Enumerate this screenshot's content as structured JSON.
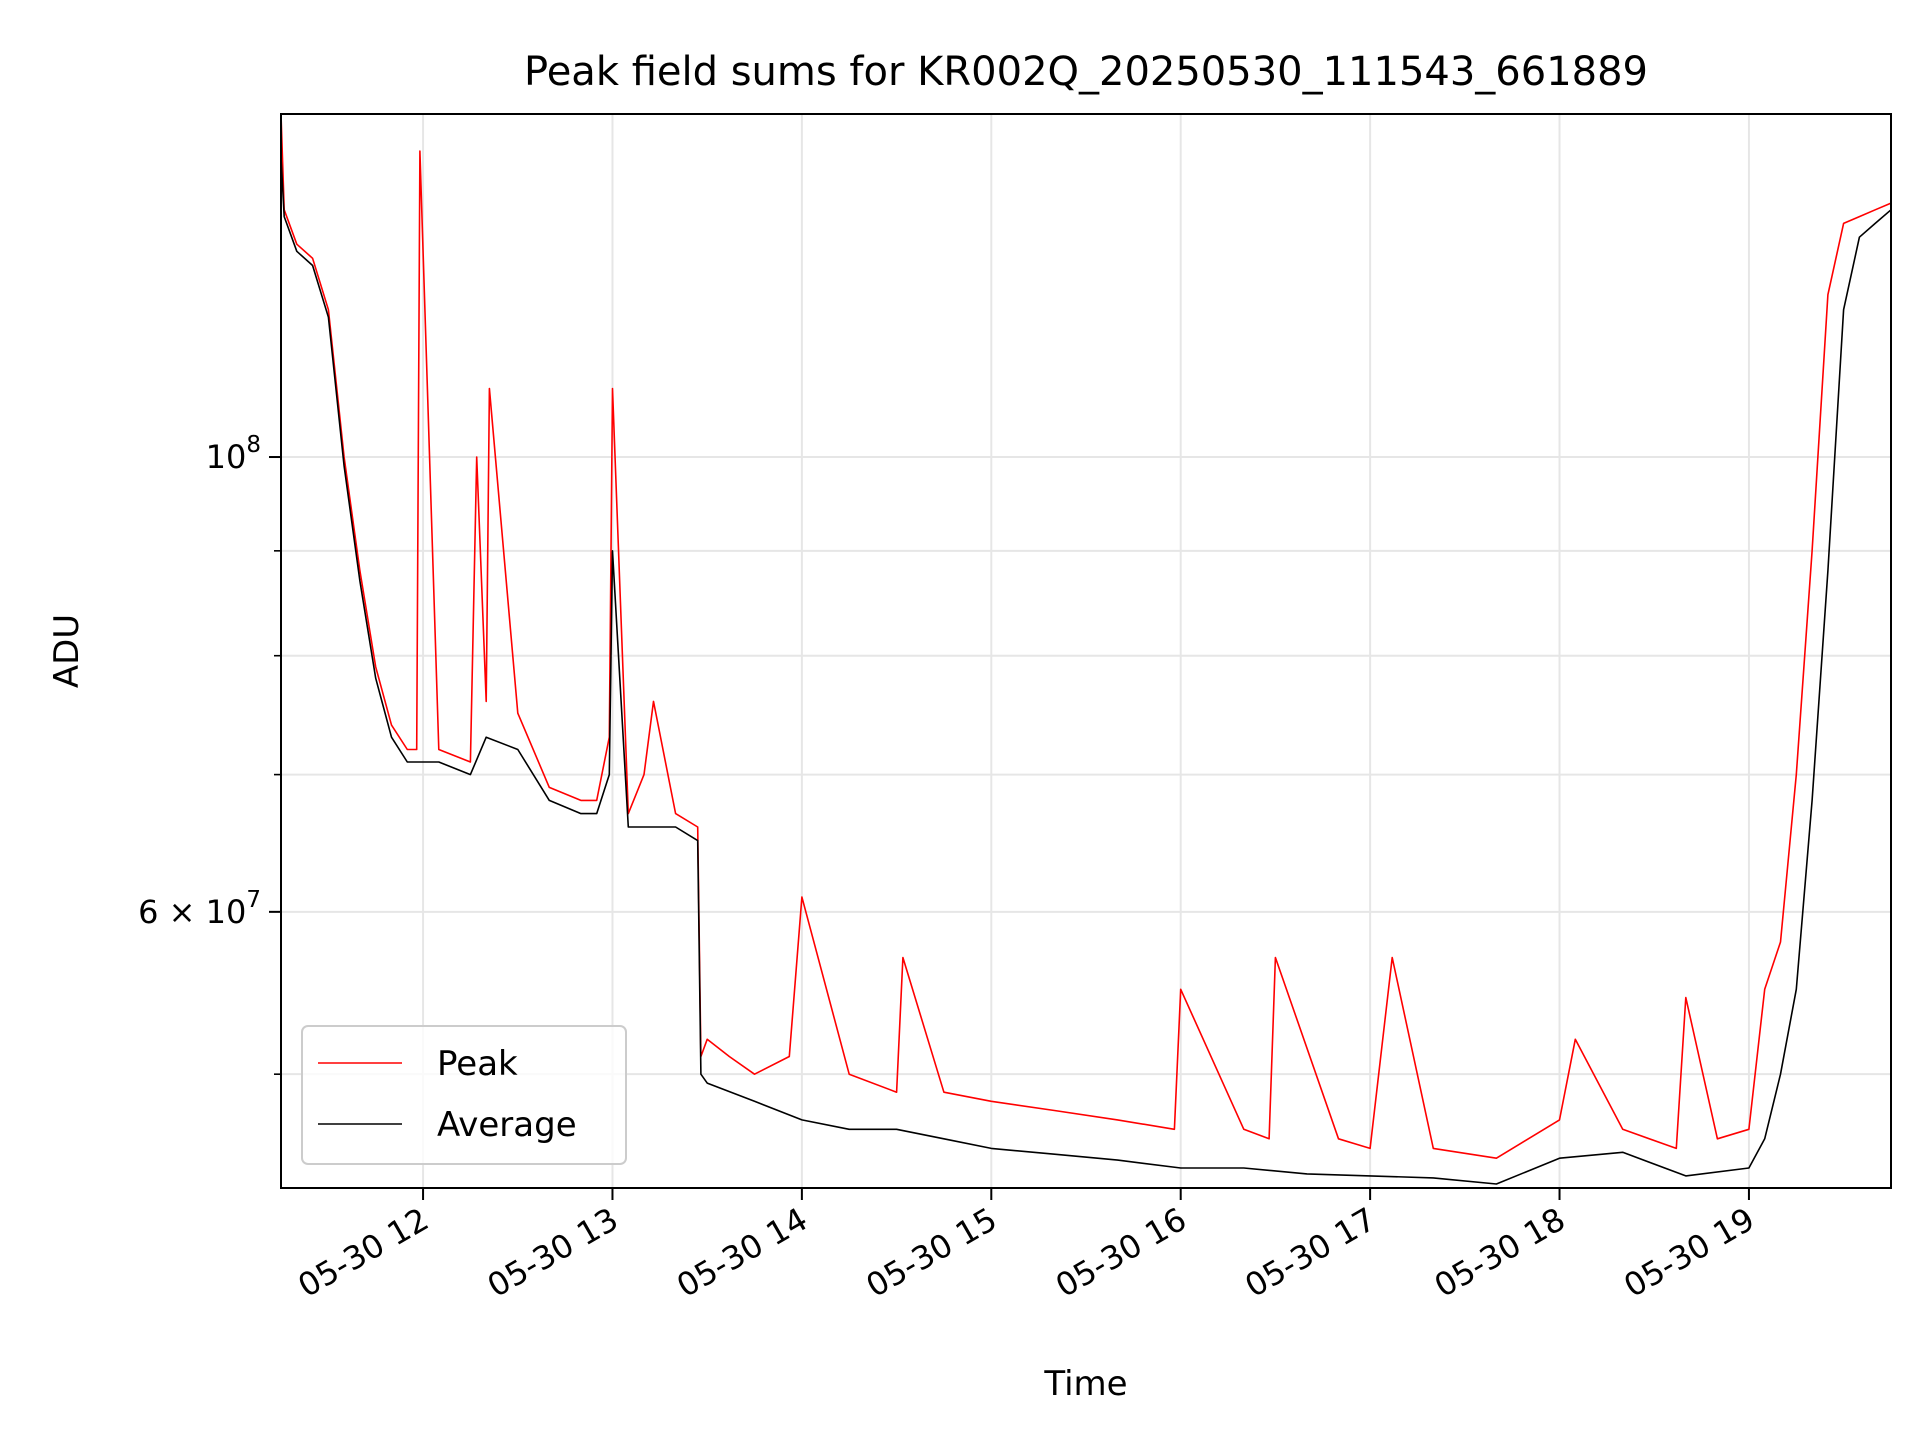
{
  "chart_data": {
    "type": "line",
    "title": "Peak field sums for KR002Q_20250530_111543_661889",
    "xlabel": "Time",
    "ylabel": "ADU",
    "y_scale": "log",
    "x_range": [
      "2025-05-30 11:15",
      "2025-05-30 19:45"
    ],
    "ylim": [
      44000000,
      147000000
    ],
    "grid": true,
    "legend_position": "lower left",
    "x_ticks": [
      {
        "value": "2025-05-30 12:00",
        "label": "05-30 12"
      },
      {
        "value": "2025-05-30 13:00",
        "label": "05-30 13"
      },
      {
        "value": "2025-05-30 14:00",
        "label": "05-30 14"
      },
      {
        "value": "2025-05-30 15:00",
        "label": "05-30 15"
      },
      {
        "value": "2025-05-30 16:00",
        "label": "05-30 16"
      },
      {
        "value": "2025-05-30 17:00",
        "label": "05-30 17"
      },
      {
        "value": "2025-05-30 18:00",
        "label": "05-30 18"
      },
      {
        "value": "2025-05-30 19:00",
        "label": "05-30 19"
      }
    ],
    "y_major_ticks": [
      {
        "value": 100000000,
        "base": "10",
        "exp": "8"
      },
      {
        "value": 60000000,
        "base": "6 × 10",
        "exp": "7"
      }
    ],
    "y_minor_ticks": [
      50000000,
      70000000,
      80000000,
      90000000
    ],
    "colors": {
      "peak": "#ff0000",
      "average": "#000000"
    },
    "series": [
      {
        "name": "Peak",
        "x": [
          "2025-05-30 11:15",
          "2025-05-30 11:16",
          "2025-05-30 11:20",
          "2025-05-30 11:25",
          "2025-05-30 11:30",
          "2025-05-30 11:35",
          "2025-05-30 11:40",
          "2025-05-30 11:45",
          "2025-05-30 11:50",
          "2025-05-30 11:55",
          "2025-05-30 11:58",
          "2025-05-30 11:59",
          "2025-05-30 12:05",
          "2025-05-30 12:15",
          "2025-05-30 12:17",
          "2025-05-30 12:20",
          "2025-05-30 12:21",
          "2025-05-30 12:30",
          "2025-05-30 12:40",
          "2025-05-30 12:50",
          "2025-05-30 12:55",
          "2025-05-30 12:59",
          "2025-05-30 13:00",
          "2025-05-30 13:05",
          "2025-05-30 13:10",
          "2025-05-30 13:13",
          "2025-05-30 13:20",
          "2025-05-30 13:27",
          "2025-05-30 13:28",
          "2025-05-30 13:30",
          "2025-05-30 13:37",
          "2025-05-30 13:45",
          "2025-05-30 13:56",
          "2025-05-30 14:00",
          "2025-05-30 14:15",
          "2025-05-30 14:30",
          "2025-05-30 14:32",
          "2025-05-30 14:45",
          "2025-05-30 15:00",
          "2025-05-30 15:20",
          "2025-05-30 15:40",
          "2025-05-30 15:58",
          "2025-05-30 16:00",
          "2025-05-30 16:20",
          "2025-05-30 16:28",
          "2025-05-30 16:30",
          "2025-05-30 16:50",
          "2025-05-30 17:00",
          "2025-05-30 17:07",
          "2025-05-30 17:20",
          "2025-05-30 17:40",
          "2025-05-30 18:00",
          "2025-05-30 18:05",
          "2025-05-30 18:20",
          "2025-05-30 18:37",
          "2025-05-30 18:40",
          "2025-05-30 18:50",
          "2025-05-30 19:00",
          "2025-05-30 19:05",
          "2025-05-30 19:10",
          "2025-05-30 19:15",
          "2025-05-30 19:20",
          "2025-05-30 19:25",
          "2025-05-30 19:30",
          "2025-05-30 19:35",
          "2025-05-30 19:40",
          "2025-05-30 19:45"
        ],
        "y": [
          147000000,
          132000000,
          127000000,
          125000000,
          118000000,
          100000000,
          88000000,
          79000000,
          74000000,
          72000000,
          72000000,
          141000000,
          72000000,
          71000000,
          100000000,
          76000000,
          108000000,
          75000000,
          69000000,
          68000000,
          68000000,
          73000000,
          108000000,
          67000000,
          70000000,
          76000000,
          67000000,
          66000000,
          51000000,
          52000000,
          51000000,
          50000000,
          51000000,
          61000000,
          50000000,
          49000000,
          57000000,
          49000000,
          48500000,
          48000000,
          47500000,
          47000000,
          55000000,
          47000000,
          46500000,
          57000000,
          46500000,
          46000000,
          57000000,
          46000000,
          45500000,
          47500000,
          52000000,
          47000000,
          46000000,
          54500000,
          46500000,
          47000000,
          55000000,
          58000000,
          70000000,
          90000000,
          120000000,
          130000000,
          131000000,
          132000000,
          133000000
        ]
      },
      {
        "name": "Average",
        "x": [
          "2025-05-30 11:15",
          "2025-05-30 11:16",
          "2025-05-30 11:20",
          "2025-05-30 11:25",
          "2025-05-30 11:30",
          "2025-05-30 11:35",
          "2025-05-30 11:40",
          "2025-05-30 11:45",
          "2025-05-30 11:50",
          "2025-05-30 11:55",
          "2025-05-30 12:05",
          "2025-05-30 12:15",
          "2025-05-30 12:20",
          "2025-05-30 12:30",
          "2025-05-30 12:40",
          "2025-05-30 12:50",
          "2025-05-30 12:55",
          "2025-05-30 12:59",
          "2025-05-30 13:00",
          "2025-05-30 13:05",
          "2025-05-30 13:10",
          "2025-05-30 13:20",
          "2025-05-30 13:27",
          "2025-05-30 13:28",
          "2025-05-30 13:30",
          "2025-05-30 13:45",
          "2025-05-30 14:00",
          "2025-05-30 14:15",
          "2025-05-30 14:30",
          "2025-05-30 14:45",
          "2025-05-30 15:00",
          "2025-05-30 15:20",
          "2025-05-30 15:40",
          "2025-05-30 16:00",
          "2025-05-30 16:20",
          "2025-05-30 16:40",
          "2025-05-30 17:00",
          "2025-05-30 17:20",
          "2025-05-30 17:40",
          "2025-05-30 18:00",
          "2025-05-30 18:20",
          "2025-05-30 18:40",
          "2025-05-30 19:00",
          "2025-05-30 19:05",
          "2025-05-30 19:10",
          "2025-05-30 19:15",
          "2025-05-30 19:20",
          "2025-05-30 19:25",
          "2025-05-30 19:30",
          "2025-05-30 19:35",
          "2025-05-30 19:40",
          "2025-05-30 19:45"
        ],
        "y": [
          140000000,
          131000000,
          126000000,
          124000000,
          117000000,
          99000000,
          87000000,
          78000000,
          73000000,
          71000000,
          71000000,
          70000000,
          73000000,
          72000000,
          68000000,
          67000000,
          67000000,
          70000000,
          90000000,
          66000000,
          66000000,
          66000000,
          65000000,
          50000000,
          49500000,
          48500000,
          47500000,
          47000000,
          47000000,
          46500000,
          46000000,
          45700000,
          45400000,
          45000000,
          45000000,
          44700000,
          44600000,
          44500000,
          44200000,
          45500000,
          45800000,
          44600000,
          45000000,
          46500000,
          50000000,
          55000000,
          68000000,
          88000000,
          118000000,
          128000000,
          130000000,
          132000000
        ]
      }
    ]
  }
}
